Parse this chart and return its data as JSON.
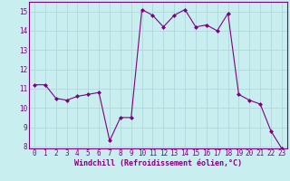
{
  "hours": [
    0,
    1,
    2,
    3,
    4,
    5,
    6,
    7,
    8,
    9,
    10,
    11,
    12,
    13,
    14,
    15,
    16,
    17,
    18,
    19,
    20,
    21,
    22,
    23
  ],
  "values": [
    11.2,
    11.2,
    10.5,
    10.4,
    10.6,
    10.7,
    10.8,
    8.3,
    9.5,
    9.5,
    15.1,
    14.8,
    14.2,
    14.8,
    15.1,
    14.2,
    14.3,
    14.0,
    14.9,
    10.7,
    10.4,
    10.2,
    8.8,
    7.9
  ],
  "line_color": "#800080",
  "marker": "D",
  "marker_size": 2,
  "bg_color": "#c8eef0",
  "grid_color": "#b0d8dc",
  "xlabel": "Windchill (Refroidissement éolien,°C)",
  "xlabel_color": "#800080",
  "tick_color": "#800080",
  "ylim": [
    7.9,
    15.5
  ],
  "xlim": [
    -0.5,
    23.5
  ],
  "yticks": [
    8,
    9,
    10,
    11,
    12,
    13,
    14,
    15
  ],
  "xticks": [
    0,
    1,
    2,
    3,
    4,
    5,
    6,
    7,
    8,
    9,
    10,
    11,
    12,
    13,
    14,
    15,
    16,
    17,
    18,
    19,
    20,
    21,
    22,
    23
  ],
  "tick_fontsize": 5.5,
  "xlabel_fontsize": 6.0
}
